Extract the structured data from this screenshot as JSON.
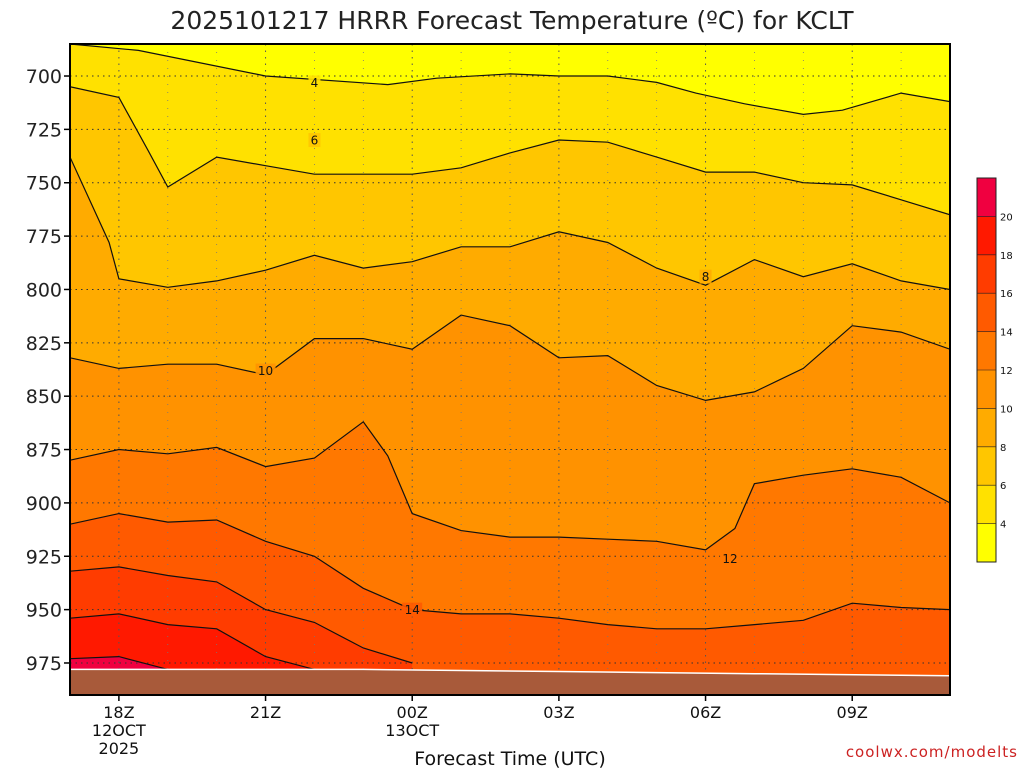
{
  "chart_data": {
    "type": "contour",
    "title": "2025101217 HRRR Forecast Temperature (ºC) for KCLT",
    "xlabel": "Forecast Time (UTC)",
    "ylabel": "",
    "y_axis": {
      "reversed": true,
      "range": [
        685,
        990
      ],
      "ticks": [
        "700",
        "725",
        "750",
        "775",
        "800",
        "825",
        "850",
        "875",
        "900",
        "925",
        "950",
        "975"
      ]
    },
    "x_axis": {
      "range_hours": [
        -1,
        17
      ],
      "ticks": [
        {
          "hour": 0,
          "label": "18Z",
          "sub": [
            "12OCT",
            "2025"
          ]
        },
        {
          "hour": 3,
          "label": "21Z",
          "sub": []
        },
        {
          "hour": 6,
          "label": "00Z",
          "sub": [
            "13OCT"
          ]
        },
        {
          "hour": 9,
          "label": "03Z",
          "sub": []
        },
        {
          "hour": 12,
          "label": "06Z",
          "sub": []
        },
        {
          "hour": 15,
          "label": "09Z",
          "sub": []
        }
      ]
    },
    "grid": true,
    "colorbar": {
      "levels": [
        2,
        4,
        6,
        8,
        10,
        12,
        14,
        16,
        18,
        20,
        22
      ],
      "labels": [
        "4",
        "6",
        "8",
        "10",
        "12",
        "14",
        "16",
        "18",
        "20"
      ],
      "colors": [
        "#ffff00",
        "#ffe100",
        "#ffc600",
        "#ffab00",
        "#ff9200",
        "#ff7800",
        "#ff5a00",
        "#ff3c00",
        "#ff1900",
        "#f00040"
      ]
    },
    "isotherms": [
      {
        "value": 4,
        "label": "4",
        "label_at": [
          4,
          703
        ],
        "points": [
          [
            -1,
            685
          ],
          [
            0.4,
            688
          ],
          [
            3,
            700
          ],
          [
            5.5,
            704
          ],
          [
            6.5,
            701
          ],
          [
            8,
            699
          ],
          [
            9,
            700
          ],
          [
            10,
            700
          ],
          [
            11,
            703
          ],
          [
            11.8,
            708
          ],
          [
            12.8,
            713
          ],
          [
            14,
            718
          ],
          [
            14.8,
            716
          ],
          [
            16,
            708
          ],
          [
            17,
            712
          ]
        ]
      },
      {
        "value": 6,
        "label": "6",
        "label_at": [
          4,
          730
        ],
        "points": [
          [
            -1,
            705
          ],
          [
            0,
            710
          ],
          [
            0.6,
            735
          ],
          [
            1,
            752
          ],
          [
            2,
            738
          ],
          [
            3,
            742
          ],
          [
            4,
            746
          ],
          [
            6,
            746
          ],
          [
            7,
            743
          ],
          [
            8,
            736
          ],
          [
            9,
            730
          ],
          [
            10,
            731
          ],
          [
            11,
            738
          ],
          [
            12,
            745
          ],
          [
            13,
            745
          ],
          [
            14,
            750
          ],
          [
            15,
            751
          ],
          [
            16,
            758
          ],
          [
            17,
            765
          ]
        ]
      },
      {
        "value": 8,
        "label": "8",
        "label_at": [
          12,
          794
        ],
        "points": [
          [
            -1,
            738
          ],
          [
            -0.2,
            778
          ],
          [
            0,
            795
          ],
          [
            1,
            799
          ],
          [
            2,
            796
          ],
          [
            3,
            791
          ],
          [
            4,
            784
          ],
          [
            5,
            790
          ],
          [
            6,
            787
          ],
          [
            7,
            780
          ],
          [
            8,
            780
          ],
          [
            9,
            773
          ],
          [
            10,
            778
          ],
          [
            11,
            790
          ],
          [
            12,
            798
          ],
          [
            13,
            786
          ],
          [
            14,
            794
          ],
          [
            15,
            788
          ],
          [
            16,
            796
          ],
          [
            17,
            800
          ]
        ]
      },
      {
        "value": 10,
        "label": "10",
        "label_at": [
          3,
          838
        ],
        "points": [
          [
            -1,
            832
          ],
          [
            0,
            837
          ],
          [
            1,
            835
          ],
          [
            2,
            835
          ],
          [
            3,
            840
          ],
          [
            4,
            823
          ],
          [
            5,
            823
          ],
          [
            6,
            828
          ],
          [
            7,
            812
          ],
          [
            8,
            817
          ],
          [
            9,
            832
          ],
          [
            10,
            831
          ],
          [
            11,
            845
          ],
          [
            12,
            852
          ],
          [
            13,
            848
          ],
          [
            14,
            837
          ],
          [
            15,
            817
          ],
          [
            16,
            820
          ],
          [
            17,
            828
          ]
        ]
      },
      {
        "value": 12,
        "label": "12",
        "label_at": [
          12.5,
          926
        ],
        "points": [
          [
            -1,
            880
          ],
          [
            0,
            875
          ],
          [
            1,
            877
          ],
          [
            2,
            874
          ],
          [
            3,
            883
          ],
          [
            4,
            879
          ],
          [
            5,
            862
          ],
          [
            5.5,
            878
          ],
          [
            6,
            905
          ],
          [
            7,
            913
          ],
          [
            8,
            916
          ],
          [
            9,
            916
          ],
          [
            10,
            917
          ],
          [
            11,
            918
          ],
          [
            12,
            922
          ],
          [
            12.6,
            912
          ],
          [
            13,
            891
          ],
          [
            14,
            887
          ],
          [
            15,
            884
          ],
          [
            16,
            888
          ],
          [
            17,
            900
          ]
        ]
      },
      {
        "value": 14,
        "label": "14",
        "label_at": [
          6,
          950
        ],
        "points": [
          [
            -1,
            910
          ],
          [
            0,
            905
          ],
          [
            1,
            909
          ],
          [
            2,
            908
          ],
          [
            3,
            918
          ],
          [
            4,
            925
          ],
          [
            5,
            940
          ],
          [
            6,
            950
          ],
          [
            7,
            952
          ],
          [
            8,
            952
          ],
          [
            9,
            954
          ],
          [
            10,
            957
          ],
          [
            11,
            959
          ],
          [
            12,
            959
          ],
          [
            13,
            957
          ],
          [
            14,
            955
          ],
          [
            15,
            947
          ],
          [
            16,
            949
          ],
          [
            17,
            950
          ]
        ]
      },
      {
        "value": 16,
        "label": "",
        "points": [
          [
            -1,
            932
          ],
          [
            0,
            930
          ],
          [
            1,
            934
          ],
          [
            2,
            937
          ],
          [
            3,
            950
          ],
          [
            4,
            956
          ],
          [
            5,
            968
          ],
          [
            6,
            975
          ]
        ]
      },
      {
        "value": 18,
        "label": "",
        "points": [
          [
            -1,
            954
          ],
          [
            0,
            952
          ],
          [
            1,
            957
          ],
          [
            2,
            959
          ],
          [
            3,
            972
          ],
          [
            4,
            978
          ]
        ]
      },
      {
        "value": 20,
        "label": "",
        "points": [
          [
            -1,
            973
          ],
          [
            0,
            972
          ],
          [
            1,
            978
          ],
          [
            2,
            982
          ]
        ]
      }
    ],
    "ground_profile": [
      [
        -1,
        978
      ],
      [
        5,
        978
      ],
      [
        9,
        979
      ],
      [
        13,
        980
      ],
      [
        17,
        981
      ]
    ]
  },
  "credit": "coolwx.com/modelts"
}
